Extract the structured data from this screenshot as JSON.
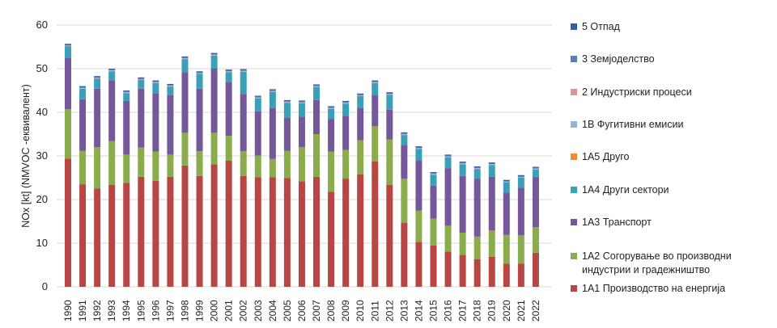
{
  "chart_data": {
    "type": "bar",
    "stacked": true,
    "title": "",
    "xlabel": "",
    "ylabel": "NOx [kt] (NMVOC -еквивалент)",
    "ylim": [
      0,
      60
    ],
    "yticks": [
      0,
      10,
      20,
      30,
      40,
      50,
      60
    ],
    "grid": true,
    "legend_position": "right",
    "categories": [
      "1990",
      "1991",
      "1992",
      "1993",
      "1994",
      "1995",
      "1996",
      "1997",
      "1998",
      "1999",
      "2000",
      "2001",
      "2002",
      "2003",
      "2004",
      "2005",
      "2006",
      "2007",
      "2008",
      "2009",
      "2010",
      "2011",
      "2012",
      "2013",
      "2014",
      "2015",
      "2016",
      "2017",
      "2018",
      "2019",
      "2020",
      "2021",
      "2022"
    ],
    "series": [
      {
        "name": "1A1 Производство на енергија",
        "color": "#b84644",
        "values": [
          29.4,
          23.5,
          22.5,
          23.4,
          23.8,
          25.2,
          24.3,
          25.2,
          27.8,
          25.4,
          28.1,
          28.9,
          25.4,
          25.1,
          25.1,
          24.9,
          24.2,
          25.2,
          21.8,
          24.8,
          25.8,
          28.7,
          23.4,
          14.7,
          10.3,
          9.5,
          8.1,
          7.3,
          6.3,
          6.9,
          5.3,
          5.3,
          7.8
        ]
      },
      {
        "name": "1A2 Согорување во производни индустрии и градежништво",
        "color": "#8aac4b",
        "values": [
          11.3,
          7.7,
          9.5,
          10.0,
          6.5,
          6.7,
          6.7,
          5.1,
          7.5,
          5.7,
          7.2,
          5.7,
          5.7,
          5.0,
          4.2,
          6.3,
          7.8,
          9.8,
          9.2,
          6.6,
          7.8,
          8.1,
          10.4,
          10.1,
          7.2,
          6.1,
          5.9,
          5.1,
          5.2,
          6.0,
          6.6,
          6.5,
          5.9
        ]
      },
      {
        "name": "1A3 Транспорт",
        "color": "#74589a",
        "values": [
          11.7,
          11.8,
          13.4,
          13.9,
          12.3,
          13.5,
          13.4,
          13.6,
          13.9,
          14.3,
          14.7,
          12.4,
          13.1,
          10.1,
          11.7,
          7.5,
          7.0,
          7.8,
          7.5,
          7.8,
          7.4,
          7.2,
          6.8,
          7.6,
          11.5,
          7.6,
          13.2,
          13.0,
          13.3,
          12.3,
          9.7,
          10.9,
          11.5
        ]
      },
      {
        "name": "1A4 Други сектори",
        "color": "#3aa0b9",
        "values": [
          2.7,
          2.4,
          2.3,
          2.1,
          1.8,
          2.0,
          2.3,
          2.0,
          3.0,
          3.4,
          3.0,
          2.2,
          5.1,
          3.0,
          3.7,
          3.5,
          3.1,
          3.0,
          2.3,
          2.8,
          2.7,
          2.7,
          3.4,
          2.4,
          2.6,
          2.5,
          2.5,
          2.7,
          2.2,
          2.7,
          2.3,
          2.3,
          1.7
        ]
      },
      {
        "name": "1A5 Друго",
        "color": "#f08a2c",
        "values": [
          0,
          0,
          0,
          0,
          0,
          0,
          0,
          0,
          0,
          0,
          0,
          0,
          0,
          0,
          0,
          0,
          0,
          0,
          0,
          0,
          0,
          0,
          0,
          0,
          0,
          0,
          0,
          0,
          0,
          0,
          0,
          0,
          0
        ]
      },
      {
        "name": "1B Фугитивни емисии",
        "color": "#95b3d7",
        "values": [
          0.1,
          0.1,
          0.1,
          0.1,
          0.1,
          0.1,
          0.1,
          0.1,
          0.1,
          0.1,
          0.1,
          0.1,
          0.1,
          0.1,
          0.1,
          0.1,
          0.1,
          0.1,
          0.1,
          0.1,
          0.1,
          0.1,
          0.1,
          0.1,
          0.1,
          0.1,
          0.1,
          0.1,
          0.1,
          0.1,
          0.1,
          0.1,
          0.1
        ]
      },
      {
        "name": "2 Индустриски процеси",
        "color": "#d99694",
        "values": [
          0.1,
          0.1,
          0.1,
          0.1,
          0.1,
          0.1,
          0.1,
          0.1,
          0.1,
          0.1,
          0.1,
          0.1,
          0.1,
          0.1,
          0.1,
          0.1,
          0.1,
          0.1,
          0.1,
          0.1,
          0.1,
          0.1,
          0.1,
          0.1,
          0.1,
          0.1,
          0.1,
          0.1,
          0.1,
          0.1,
          0.1,
          0.1,
          0.1
        ]
      },
      {
        "name": "3 Земјоделство",
        "color": "#4f81bd",
        "values": [
          0.15,
          0.15,
          0.15,
          0.15,
          0.15,
          0.15,
          0.15,
          0.15,
          0.15,
          0.15,
          0.15,
          0.15,
          0.15,
          0.15,
          0.15,
          0.15,
          0.15,
          0.15,
          0.15,
          0.15,
          0.15,
          0.15,
          0.15,
          0.15,
          0.15,
          0.15,
          0.15,
          0.15,
          0.15,
          0.15,
          0.15,
          0.15,
          0.15
        ]
      },
      {
        "name": "5 Отпад",
        "color": "#2e62a8",
        "values": [
          0.25,
          0.25,
          0.25,
          0.25,
          0.25,
          0.25,
          0.25,
          0.25,
          0.25,
          0.25,
          0.25,
          0.25,
          0.25,
          0.25,
          0.25,
          0.25,
          0.25,
          0.25,
          0.25,
          0.25,
          0.25,
          0.25,
          0.25,
          0.25,
          0.25,
          0.25,
          0.25,
          0.25,
          0.25,
          0.25,
          0.25,
          0.25,
          0.25
        ]
      }
    ],
    "legend": [
      {
        "label": "5 Отпад",
        "color": "#2e62a8"
      },
      {
        "label": "3 Земјоделство",
        "color": "#4f81bd"
      },
      {
        "label": "2 Индустриски процеси",
        "color": "#d99694"
      },
      {
        "label": "1B Фугитивни емисии",
        "color": "#95b3d7"
      },
      {
        "label": "1A5 Друго",
        "color": "#f08a2c"
      },
      {
        "label": "1A4 Други сектори",
        "color": "#3aa0b9"
      },
      {
        "label": "1A3 Транспорт",
        "color": "#74589a"
      },
      {
        "label": "1A2 Согорување во производни индустрии и градежништво",
        "color": "#8aac4b"
      },
      {
        "label": "1A1 Производство на енергија",
        "color": "#b84644"
      }
    ]
  }
}
